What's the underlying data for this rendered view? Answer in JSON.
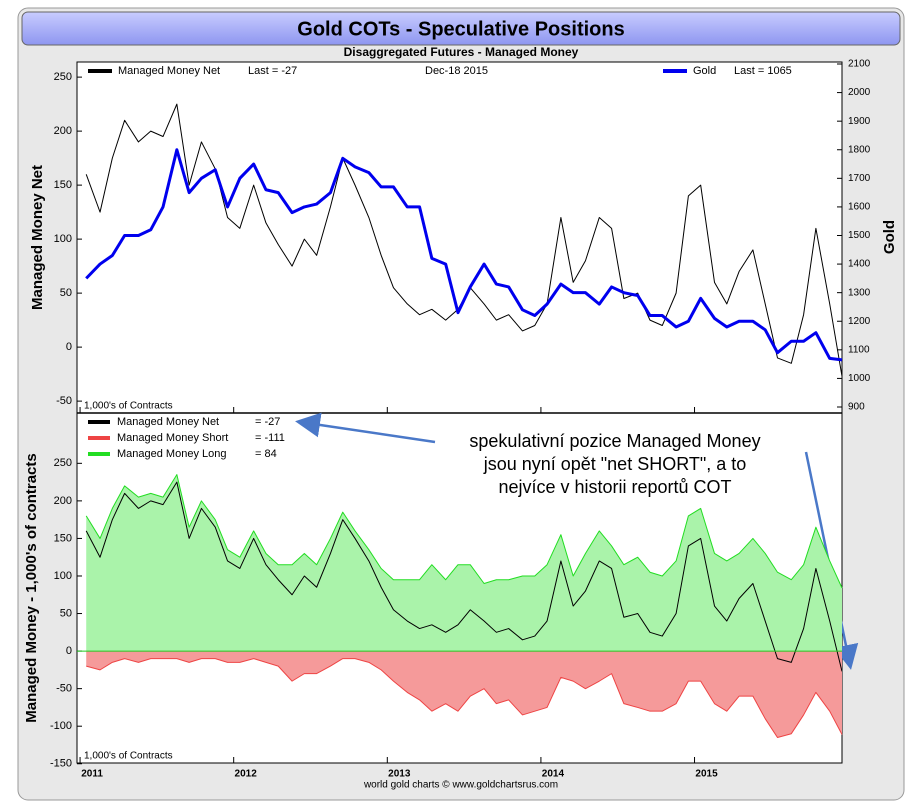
{
  "header": {
    "title": "Gold COTs - Speculative Positions",
    "footer": "world gold charts © www.goldchartsrus.com"
  },
  "annotation": {
    "lines": [
      "spekulativní pozice Managed Money",
      "jsou nyní opět \"net SHORT\", a to",
      "nejvíce v historii reportů COT"
    ]
  },
  "chart_data": [
    {
      "type": "line",
      "subtitle": "Disaggregated Futures - Managed Money",
      "date": "Dec-18  2015",
      "note": "1,000's of Contracts",
      "ylabel": "Managed Money Net",
      "y2label": "Gold",
      "xlim": [
        2010.98,
        2015.96
      ],
      "xticks": [
        2011,
        2012,
        2013,
        2014,
        2015
      ],
      "ylim": [
        -61,
        264
      ],
      "yticks": [
        -50,
        0,
        50,
        100,
        150,
        200,
        250
      ],
      "y2lim": [
        879,
        2107
      ],
      "y2ticks": [
        900,
        1000,
        1100,
        1200,
        1300,
        1400,
        1500,
        1600,
        1700,
        1800,
        1900,
        2000,
        2100
      ],
      "x": [
        2011.04,
        2011.13,
        2011.21,
        2011.29,
        2011.38,
        2011.46,
        2011.54,
        2011.63,
        2011.71,
        2011.79,
        2011.88,
        2011.96,
        2012.04,
        2012.13,
        2012.21,
        2012.29,
        2012.38,
        2012.46,
        2012.54,
        2012.63,
        2012.71,
        2012.79,
        2012.88,
        2012.96,
        2013.04,
        2013.13,
        2013.21,
        2013.29,
        2013.38,
        2013.46,
        2013.54,
        2013.63,
        2013.71,
        2013.79,
        2013.88,
        2013.96,
        2014.04,
        2014.13,
        2014.21,
        2014.29,
        2014.38,
        2014.46,
        2014.54,
        2014.63,
        2014.71,
        2014.79,
        2014.88,
        2014.96,
        2015.04,
        2015.13,
        2015.21,
        2015.29,
        2015.38,
        2015.46,
        2015.54,
        2015.63,
        2015.71,
        2015.79,
        2015.88,
        2015.96
      ],
      "series": [
        {
          "name": "Managed Money Net",
          "legend_value": "Last = -27",
          "color": "#000000",
          "width": 1,
          "values": [
            160,
            125,
            175,
            210,
            190,
            200,
            195,
            225,
            150,
            190,
            165,
            120,
            110,
            150,
            115,
            95,
            75,
            100,
            85,
            130,
            175,
            150,
            120,
            85,
            55,
            40,
            30,
            35,
            25,
            35,
            55,
            40,
            25,
            30,
            15,
            20,
            40,
            120,
            60,
            80,
            120,
            110,
            45,
            50,
            25,
            20,
            50,
            140,
            150,
            60,
            40,
            70,
            90,
            40,
            -10,
            -15,
            30,
            110,
            40,
            -27
          ]
        },
        {
          "name": "Gold",
          "legend_value": "Last = 1065",
          "color": "#0000ee",
          "width": 3,
          "axis": "y2",
          "values": [
            1350,
            1400,
            1430,
            1500,
            1500,
            1520,
            1600,
            1800,
            1650,
            1700,
            1730,
            1600,
            1700,
            1750,
            1660,
            1650,
            1580,
            1600,
            1610,
            1650,
            1770,
            1740,
            1720,
            1670,
            1670,
            1600,
            1600,
            1420,
            1400,
            1230,
            1320,
            1400,
            1330,
            1320,
            1240,
            1220,
            1260,
            1330,
            1300,
            1300,
            1260,
            1320,
            1300,
            1290,
            1220,
            1220,
            1180,
            1200,
            1280,
            1210,
            1180,
            1200,
            1200,
            1170,
            1090,
            1130,
            1130,
            1160,
            1070,
            1065
          ]
        }
      ]
    },
    {
      "type": "area",
      "note": "1,000's of Contracts",
      "ylabel": "Managed Money - 1,000's of contracts",
      "xlim": [
        2010.98,
        2015.96
      ],
      "xticks": [
        2011,
        2012,
        2013,
        2014,
        2015
      ],
      "ylim": [
        -149,
        317
      ],
      "yticks": [
        -150,
        -100,
        -50,
        0,
        50,
        100,
        150,
        200,
        250
      ],
      "x": [
        2011.04,
        2011.13,
        2011.21,
        2011.29,
        2011.38,
        2011.46,
        2011.54,
        2011.63,
        2011.71,
        2011.79,
        2011.88,
        2011.96,
        2012.04,
        2012.13,
        2012.21,
        2012.29,
        2012.38,
        2012.46,
        2012.54,
        2012.63,
        2012.71,
        2012.79,
        2012.88,
        2012.96,
        2013.04,
        2013.13,
        2013.21,
        2013.29,
        2013.38,
        2013.46,
        2013.54,
        2013.63,
        2013.71,
        2013.79,
        2013.88,
        2013.96,
        2014.04,
        2014.13,
        2014.21,
        2014.29,
        2014.38,
        2014.46,
        2014.54,
        2014.63,
        2014.71,
        2014.79,
        2014.88,
        2014.96,
        2015.04,
        2015.13,
        2015.21,
        2015.29,
        2015.38,
        2015.46,
        2015.54,
        2015.63,
        2015.71,
        2015.79,
        2015.88,
        2015.96
      ],
      "series": [
        {
          "name": "Managed Money Long",
          "legend_value": "= 84",
          "color": "#22dd22",
          "fill": "#aaf3aa",
          "width": 1,
          "values": [
            180,
            150,
            190,
            220,
            205,
            210,
            205,
            235,
            165,
            200,
            175,
            135,
            125,
            160,
            130,
            115,
            115,
            130,
            115,
            150,
            185,
            160,
            135,
            110,
            95,
            95,
            95,
            115,
            95,
            115,
            115,
            90,
            95,
            95,
            100,
            100,
            115,
            155,
            100,
            130,
            160,
            140,
            115,
            125,
            105,
            100,
            120,
            180,
            190,
            130,
            120,
            130,
            150,
            130,
            105,
            95,
            115,
            165,
            120,
            84
          ]
        },
        {
          "name": "Managed Money Short",
          "legend_value": "= -111",
          "color": "#ee4444",
          "fill": "#f59a9a",
          "width": 1,
          "values": [
            -20,
            -25,
            -15,
            -10,
            -15,
            -10,
            -10,
            -10,
            -15,
            -10,
            -10,
            -15,
            -15,
            -10,
            -15,
            -20,
            -40,
            -30,
            -30,
            -20,
            -10,
            -10,
            -15,
            -25,
            -40,
            -55,
            -65,
            -80,
            -70,
            -80,
            -60,
            -50,
            -70,
            -65,
            -85,
            -80,
            -75,
            -35,
            -40,
            -50,
            -40,
            -30,
            -70,
            -75,
            -80,
            -80,
            -70,
            -40,
            -40,
            -70,
            -80,
            -60,
            -60,
            -90,
            -115,
            -110,
            -85,
            -55,
            -80,
            -111
          ]
        },
        {
          "name": "Managed Money Net",
          "legend_value": "= -27",
          "color": "#000000",
          "width": 1,
          "values": [
            160,
            125,
            175,
            210,
            190,
            200,
            195,
            225,
            150,
            190,
            165,
            120,
            110,
            150,
            115,
            95,
            75,
            100,
            85,
            130,
            175,
            150,
            120,
            85,
            55,
            40,
            30,
            35,
            25,
            35,
            55,
            40,
            25,
            30,
            15,
            20,
            40,
            120,
            60,
            80,
            120,
            110,
            45,
            50,
            25,
            20,
            50,
            140,
            150,
            60,
            40,
            70,
            90,
            40,
            -10,
            -15,
            30,
            110,
            40,
            -27
          ]
        }
      ]
    }
  ]
}
